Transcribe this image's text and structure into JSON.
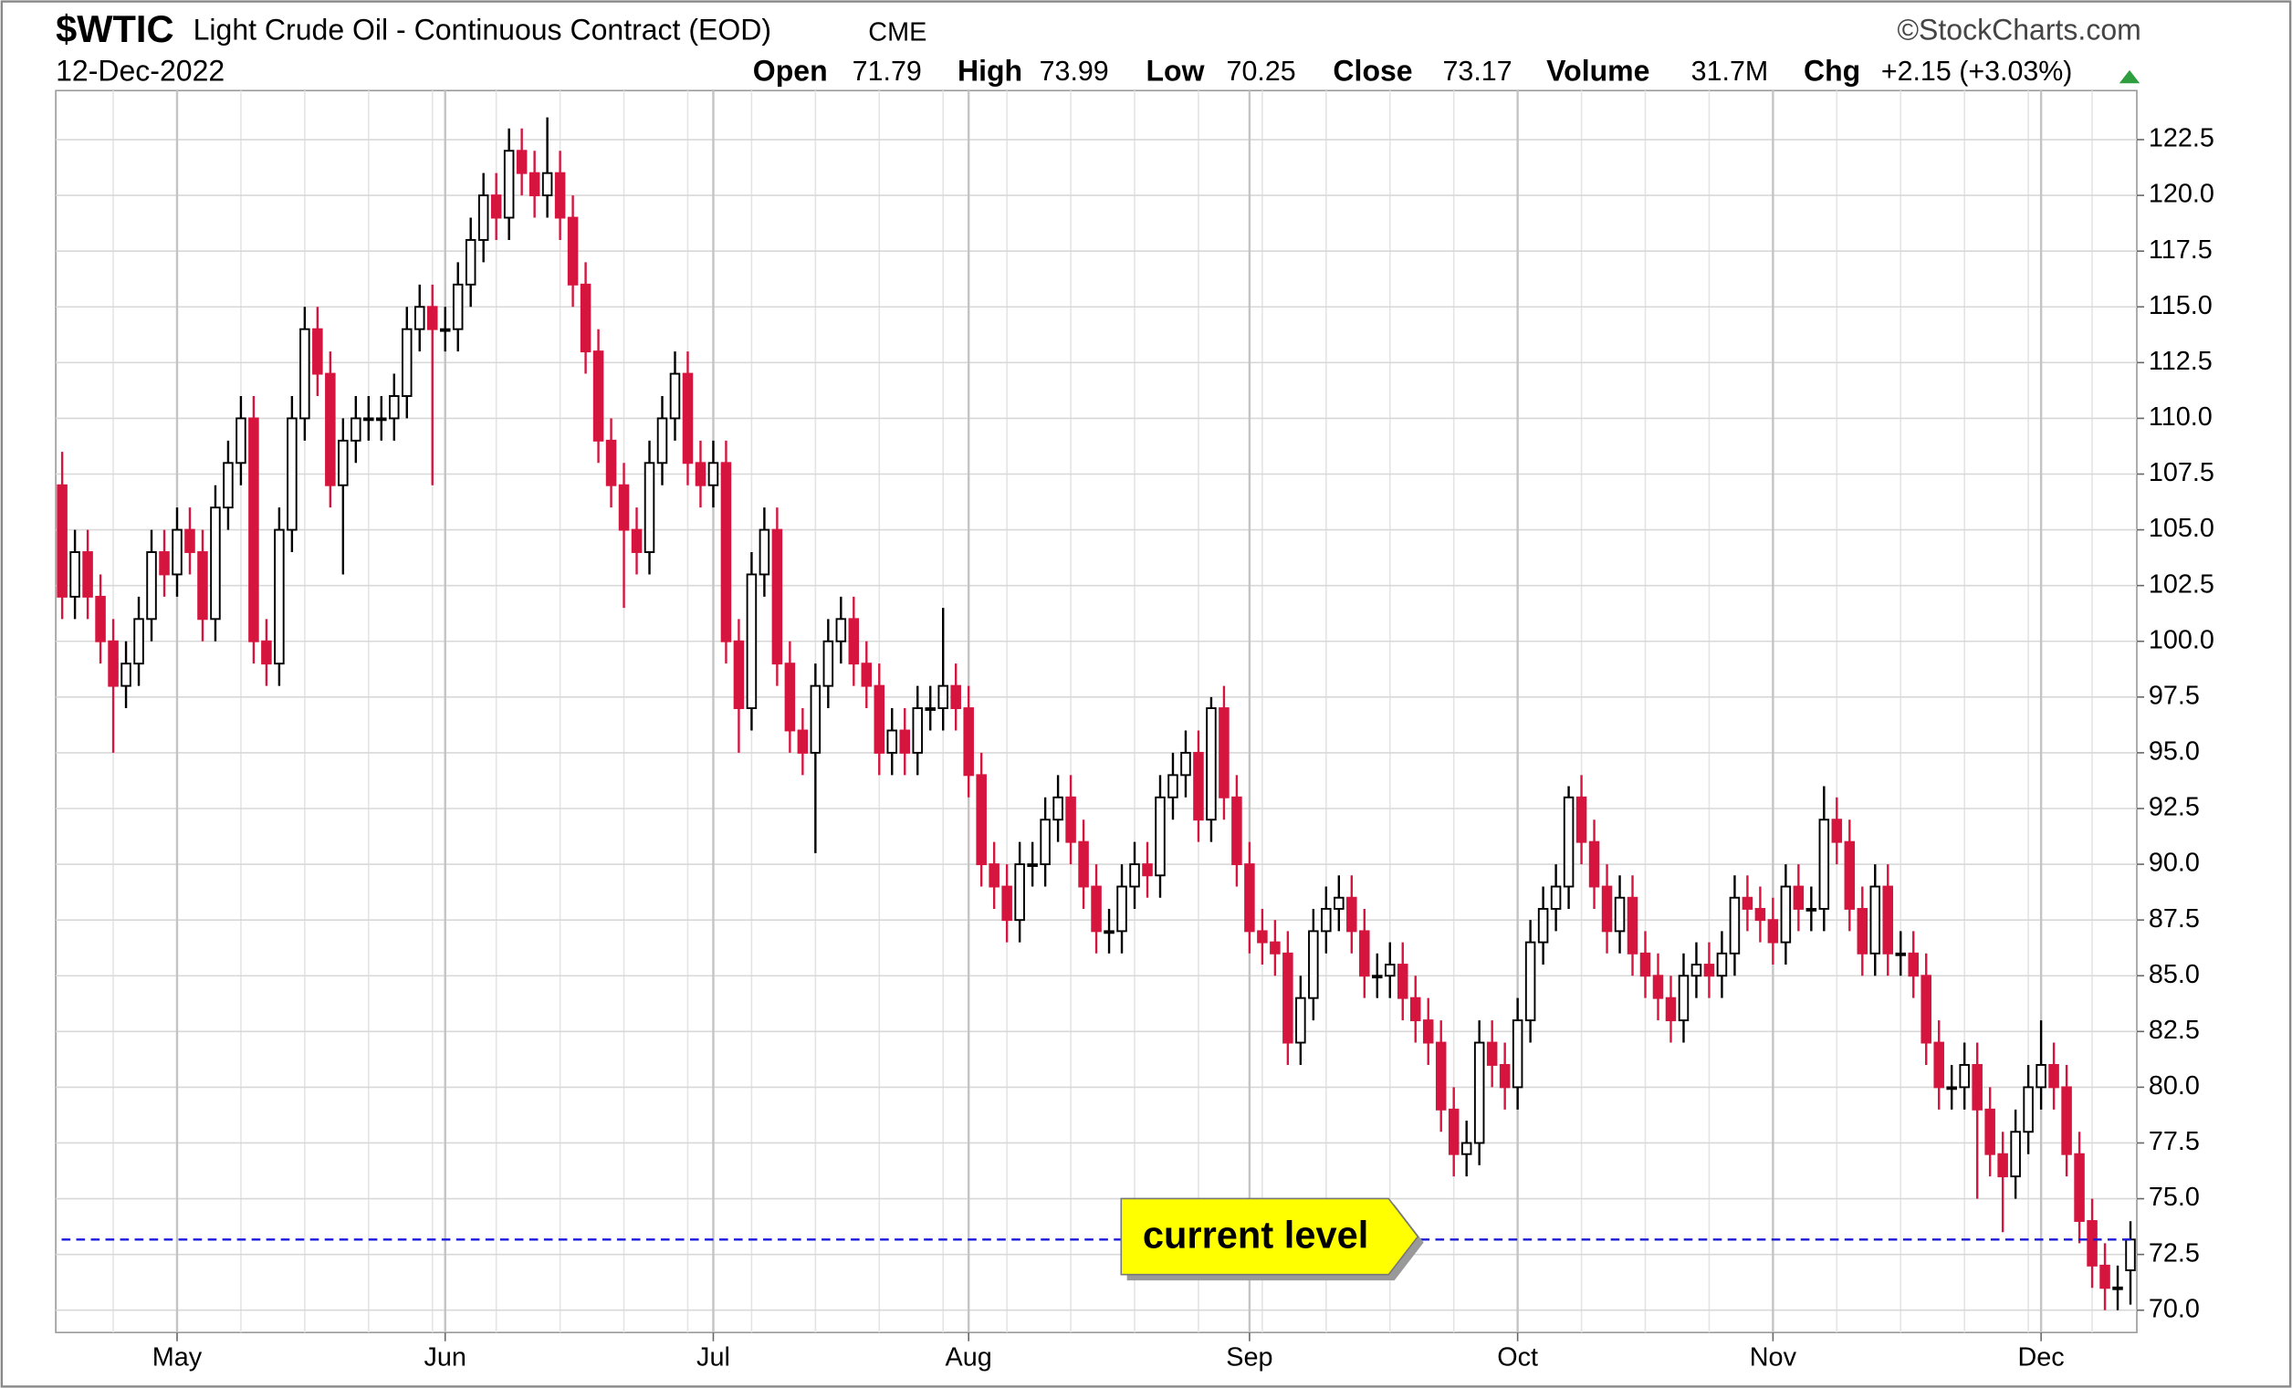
{
  "header": {
    "symbol": "$WTIC",
    "name": "Light Crude Oil - Continuous Contract (EOD)",
    "exchange": "CME",
    "source": "©StockCharts.com",
    "date": "12-Dec-2022",
    "stats": [
      {
        "label": "Open",
        "value": 71.79
      },
      {
        "label": "High",
        "value": 73.99
      },
      {
        "label": "Low",
        "value": 70.25
      },
      {
        "label": "Close",
        "value": 73.17
      },
      {
        "label": "Volume",
        "value": "31.7M"
      },
      {
        "label": "Chg",
        "value": "+2.15 (+3.03%)"
      }
    ]
  },
  "chart_data": {
    "type": "candlestick",
    "up_color": "#ffffff",
    "down_color": "#d6153f",
    "edge_color": "#000000",
    "grid": true,
    "categories": [
      null,
      null,
      null,
      null,
      null,
      null,
      null,
      null,
      null,
      "May",
      null,
      null,
      null,
      null,
      null,
      null,
      null,
      null,
      null,
      null,
      null,
      null,
      null,
      null,
      null,
      null,
      null,
      null,
      null,
      null,
      "Jun",
      null,
      null,
      null,
      null,
      null,
      null,
      null,
      null,
      null,
      null,
      null,
      null,
      null,
      null,
      null,
      null,
      null,
      null,
      null,
      null,
      "Jul",
      null,
      null,
      null,
      null,
      null,
      null,
      null,
      null,
      null,
      null,
      null,
      null,
      null,
      null,
      null,
      null,
      null,
      null,
      null,
      "Aug",
      null,
      null,
      null,
      null,
      null,
      null,
      null,
      null,
      null,
      null,
      null,
      null,
      null,
      null,
      null,
      null,
      null,
      null,
      null,
      null,
      null,
      "Sep",
      null,
      null,
      null,
      null,
      null,
      null,
      null,
      null,
      null,
      null,
      null,
      null,
      null,
      null,
      null,
      null,
      null,
      null,
      null,
      null,
      "Oct",
      null,
      null,
      null,
      null,
      null,
      null,
      null,
      null,
      null,
      null,
      null,
      null,
      null,
      null,
      null,
      null,
      null,
      null,
      null,
      "Nov",
      null,
      null,
      null,
      null,
      null,
      null,
      null,
      null,
      null,
      null,
      null,
      null,
      null,
      null,
      null,
      null,
      null,
      null,
      null,
      null,
      "Dec",
      null,
      null,
      null,
      null,
      null,
      null,
      null
    ],
    "open": [
      107,
      102,
      104,
      102,
      100,
      98,
      99,
      101,
      104,
      103,
      105,
      104,
      101,
      106,
      108,
      110,
      100,
      99,
      105,
      110,
      114,
      112,
      107,
      109,
      110,
      110,
      110,
      111,
      114,
      115,
      114,
      114,
      116,
      118,
      120,
      119,
      122,
      121,
      120,
      121,
      119,
      116,
      113,
      109,
      107,
      105,
      104,
      108,
      110,
      112,
      108,
      107,
      108,
      100,
      97,
      103,
      105,
      99,
      96,
      95,
      98,
      100,
      101,
      99,
      98,
      95,
      96,
      95,
      97,
      97,
      98,
      97,
      94,
      90,
      89,
      87.5,
      90,
      90,
      92,
      93,
      91,
      89,
      87,
      87,
      89,
      90,
      89.5,
      93,
      94,
      95,
      92,
      97,
      93,
      90,
      87,
      86.5,
      86,
      82,
      84,
      87,
      88,
      88.5,
      87,
      85,
      85,
      85.5,
      84,
      83,
      82,
      79,
      77,
      77.5,
      82,
      81,
      80,
      83,
      86.5,
      88,
      89,
      93,
      91,
      89,
      87,
      88.5,
      86,
      85,
      84,
      83,
      85,
      85.5,
      85,
      86,
      88.5,
      88,
      87.5,
      86.5,
      89,
      88,
      88,
      92,
      91,
      88,
      86,
      89,
      86,
      86,
      85,
      82,
      80,
      80,
      81,
      79,
      77,
      76,
      78,
      80,
      81,
      80,
      77,
      74,
      72,
      71,
      71.79
    ],
    "high": [
      108.5,
      105,
      105,
      103,
      101,
      100,
      102,
      105,
      105,
      106,
      106,
      105,
      107,
      109,
      111,
      111,
      101,
      106,
      111,
      115,
      115,
      113,
      110,
      111,
      111,
      111,
      112,
      115,
      116,
      116,
      115,
      117,
      119,
      121,
      121,
      123,
      123,
      122,
      123.5,
      122,
      120,
      117,
      114,
      110,
      108,
      106,
      109,
      111,
      113,
      113,
      109,
      109,
      109,
      101,
      104,
      106,
      106,
      100,
      97,
      99,
      101,
      102,
      102,
      100,
      99,
      97,
      97,
      98,
      98,
      101.5,
      99,
      98,
      95,
      91,
      90,
      91,
      91,
      93,
      94,
      94,
      92,
      90,
      88,
      90,
      91,
      91,
      94,
      95,
      96,
      96,
      97.5,
      98,
      94,
      91,
      88,
      87.5,
      87,
      85,
      88,
      89,
      89.5,
      89.5,
      88,
      86,
      86.5,
      86.5,
      85,
      84,
      83,
      80,
      78.5,
      83,
      83,
      82,
      84,
      87.5,
      89,
      90,
      93.5,
      94,
      92,
      90,
      89.5,
      89.5,
      87,
      86,
      85,
      86,
      86.5,
      86.5,
      87,
      89.5,
      89.5,
      89,
      88.5,
      90,
      90,
      89,
      93.5,
      93,
      92,
      89,
      90,
      90,
      87,
      87,
      86,
      83,
      81,
      82,
      82,
      80,
      78,
      79,
      81,
      83,
      82,
      81,
      78,
      75,
      73,
      72,
      73.99
    ],
    "low": [
      101,
      101,
      101,
      99,
      95,
      97,
      98,
      100,
      102,
      102,
      103,
      100,
      100,
      105,
      107,
      99,
      98,
      98,
      104,
      109,
      111,
      106,
      103,
      108,
      109,
      109,
      109,
      110,
      113,
      107,
      113,
      113,
      115,
      117,
      118,
      118,
      120,
      119,
      119,
      118,
      115,
      112,
      108,
      106,
      101.5,
      103,
      103,
      107,
      109,
      107,
      106,
      106,
      99,
      95,
      96,
      102,
      98,
      95,
      94,
      90.5,
      97,
      99,
      98,
      97,
      94,
      94,
      94,
      94,
      96,
      96,
      96,
      93,
      89,
      88,
      86.5,
      86.5,
      89,
      89,
      91,
      90,
      88,
      86,
      86,
      86,
      88,
      88.5,
      88.5,
      92,
      93,
      91,
      91,
      92,
      89,
      86,
      85.5,
      85,
      81,
      81,
      83,
      86,
      87,
      86,
      84,
      84,
      84,
      83,
      82,
      81,
      78,
      76,
      76,
      76.5,
      80,
      79,
      79,
      82,
      85.5,
      87,
      88,
      90,
      88,
      86,
      86,
      85,
      84,
      83,
      82,
      82,
      84,
      84,
      84,
      85,
      87,
      86.5,
      85.5,
      85.5,
      87,
      87,
      87,
      90,
      87,
      85,
      85,
      85,
      85,
      84,
      81,
      79,
      79,
      79,
      75,
      76,
      73.5,
      75,
      77,
      79,
      79,
      76,
      73,
      71,
      70,
      70,
      70.25
    ],
    "close": [
      102,
      104,
      102,
      100,
      98,
      99,
      101,
      104,
      103,
      105,
      104,
      101,
      106,
      108,
      110,
      100,
      99,
      105,
      110,
      114,
      112,
      107,
      109,
      110,
      110,
      110,
      111,
      114,
      115,
      114,
      114,
      116,
      118,
      120,
      119,
      122,
      121,
      120,
      121,
      119,
      116,
      113,
      109,
      107,
      105,
      104,
      108,
      110,
      112,
      108,
      107,
      108,
      100,
      97,
      103,
      105,
      99,
      96,
      95,
      98,
      100,
      101,
      99,
      98,
      95,
      96,
      95,
      97,
      97,
      98,
      97,
      94,
      90,
      89,
      87.5,
      90,
      90,
      92,
      93,
      91,
      89,
      87,
      87,
      89,
      90,
      89.5,
      93,
      94,
      95,
      92,
      97,
      93,
      90,
      87,
      86.5,
      86,
      82,
      84,
      87,
      88,
      88.5,
      87,
      85,
      85,
      85.5,
      84,
      83,
      82,
      79,
      77,
      77.5,
      82,
      81,
      80,
      83,
      86.5,
      88,
      89,
      93,
      91,
      89,
      87,
      88.5,
      86,
      85,
      84,
      83,
      85,
      85.5,
      85,
      86,
      88.5,
      88,
      87.5,
      86.5,
      89,
      88,
      88,
      92,
      91,
      88,
      86,
      89,
      86,
      86,
      85,
      82,
      80,
      80,
      81,
      79,
      77,
      76,
      78,
      80,
      81,
      80,
      77,
      74,
      72,
      71,
      71.02,
      73.17
    ],
    "ylim": [
      69.0,
      124.7
    ],
    "yticks": [
      {
        "value": 70,
        "label": "70.0"
      },
      {
        "value": 72.5,
        "label": "72.5"
      },
      {
        "value": 75,
        "label": "75.0"
      },
      {
        "value": 77.5,
        "label": "77.5"
      },
      {
        "value": 80,
        "label": "80.0"
      },
      {
        "value": 82.5,
        "label": "82.5"
      },
      {
        "value": 85,
        "label": "85.0"
      },
      {
        "value": 87.5,
        "label": "87.5"
      },
      {
        "value": 90,
        "label": "90.0"
      },
      {
        "value": 92.5,
        "label": "92.5"
      },
      {
        "value": 95,
        "label": "95.0"
      },
      {
        "value": 97.5,
        "label": "97.5"
      },
      {
        "value": 100,
        "label": "100.0"
      },
      {
        "value": 102.5,
        "label": "102.5"
      },
      {
        "value": 105,
        "label": "105.0"
      },
      {
        "value": 107.5,
        "label": "107.5"
      },
      {
        "value": 110,
        "label": "110.0"
      },
      {
        "value": 112.5,
        "label": "112.5"
      },
      {
        "value": 115,
        "label": "115.0"
      },
      {
        "value": 117.5,
        "label": "117.5"
      },
      {
        "value": 120,
        "label": "120.0"
      },
      {
        "value": 122.5,
        "label": "122.5"
      }
    ],
    "reference_line": {
      "value": 73.17,
      "label": "current level",
      "color": "#1a1adb"
    }
  }
}
